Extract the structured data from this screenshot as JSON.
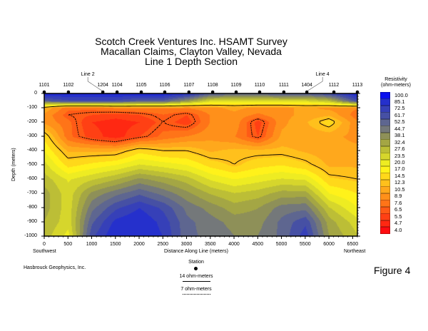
{
  "title": [
    "Scotch Creek Ventures Inc. HSAMT Survey",
    "Macallan Claims, Clayton Valley, Nevada",
    "Line 1 Depth Section"
  ],
  "company": "Hasbrouck Geophysics, Inc.",
  "figure_label": "Figure 4",
  "key": {
    "station_label": "Station",
    "contour_14_label": "14 ohm-meters",
    "contour_7_label": "7 ohm-meters"
  },
  "chart_data": {
    "type": "heatmap",
    "xlabel": "Distance Along Line (meters)",
    "ylabel": "Depth (meters)",
    "xlim": [
      0,
      6600
    ],
    "ylim": [
      -1000,
      0
    ],
    "x_ticks": [
      "0",
      "500",
      "1000",
      "1500",
      "2000",
      "2500",
      "3000",
      "3500",
      "4000",
      "4500",
      "5000",
      "5500",
      "6000",
      "6500"
    ],
    "y_ticks": [
      "0",
      "-100",
      "-200",
      "-300",
      "-400",
      "-500",
      "-600",
      "-700",
      "-800",
      "-900",
      "-1000"
    ],
    "x_end_labels": {
      "left": "Southwest",
      "right": "Northeast"
    },
    "stations": [
      {
        "label": "1101",
        "x": 0
      },
      {
        "label": "1102",
        "x": 510
      },
      {
        "label": "1204",
        "x": 1235
      },
      {
        "label": "1104",
        "x": 1535
      },
      {
        "label": "1105",
        "x": 2045
      },
      {
        "label": "1106",
        "x": 2540
      },
      {
        "label": "1107",
        "x": 3050
      },
      {
        "label": "1108",
        "x": 3550
      },
      {
        "label": "1109",
        "x": 4045
      },
      {
        "label": "1110",
        "x": 4540
      },
      {
        "label": "1111",
        "x": 5050
      },
      {
        "label": "1404",
        "x": 5535
      },
      {
        "label": "1112",
        "x": 6105
      },
      {
        "label": "1113",
        "x": 6600
      }
    ],
    "line_crossings": [
      {
        "label": "Line 2",
        "station": "1204"
      },
      {
        "label": "Line 4",
        "station": "1404"
      }
    ],
    "colorbar": {
      "title": [
        "Resistivity",
        "(ohm-meters)"
      ],
      "levels": [
        100.0,
        85.1,
        72.5,
        61.7,
        52.5,
        44.7,
        38.1,
        32.4,
        27.6,
        23.5,
        20.0,
        17.0,
        14.5,
        12.3,
        10.5,
        8.9,
        7.6,
        6.5,
        5.5,
        4.7,
        4.0
      ],
      "colors": [
        "#0a10ee",
        "#2530cc",
        "#3640b8",
        "#4650a4",
        "#5e6690",
        "#74787a",
        "#8e9058",
        "#a4a644",
        "#bcbe36",
        "#d6d62c",
        "#eeec22",
        "#fff21a",
        "#ffd81a",
        "#ffc01c",
        "#ffa81c",
        "#ff901a",
        "#ff7418",
        "#ff5a16",
        "#ff4014",
        "#ff2812",
        "#ff0c10"
      ]
    },
    "contours": [
      {
        "value": 14,
        "style": "solid"
      },
      {
        "value": 7,
        "style": "dotted"
      }
    ],
    "grid": {
      "x": [
        0,
        500,
        1000,
        1500,
        2000,
        2500,
        3000,
        3500,
        4000,
        4500,
        5000,
        5500,
        6000,
        6600
      ],
      "depth": [
        0,
        50,
        100,
        150,
        200,
        300,
        400,
        500,
        600,
        700,
        800,
        900,
        1000
      ],
      "resistivity": [
        [
          100,
          100,
          100,
          100,
          100,
          100,
          90,
          60,
          55,
          55,
          60,
          60,
          70,
          100
        ],
        [
          60,
          70,
          70,
          70,
          60,
          60,
          40,
          25,
          25,
          25,
          25,
          25,
          30,
          70
        ],
        [
          12,
          8,
          8,
          9,
          9,
          9,
          9,
          10,
          11,
          10,
          10,
          11,
          10,
          9
        ],
        [
          10,
          7,
          6.5,
          6,
          6.5,
          7.5,
          6.5,
          9,
          10,
          8.5,
          10,
          11,
          12,
          8
        ],
        [
          10,
          8,
          5.5,
          5,
          5.5,
          7,
          6,
          9,
          10,
          6,
          10,
          12,
          16,
          9
        ],
        [
          16,
          8,
          6,
          5,
          6.5,
          8,
          9,
          10,
          9,
          6.5,
          11,
          11,
          11,
          10
        ],
        [
          20,
          12,
          12,
          12,
          16,
          14,
          14,
          12,
          13,
          13,
          13,
          12,
          11,
          11
        ],
        [
          25,
          16,
          18,
          20,
          24,
          22,
          20,
          16,
          14,
          16,
          17,
          15,
          12,
          12
        ],
        [
          30,
          23,
          27,
          32,
          40,
          35,
          30,
          23,
          20,
          22,
          24,
          23,
          15,
          14
        ],
        [
          35,
          25,
          40,
          50,
          60,
          50,
          40,
          32,
          28,
          30,
          35,
          35,
          20,
          17
        ],
        [
          35,
          25,
          50,
          70,
          85,
          70,
          50,
          42,
          35,
          38,
          48,
          50,
          28,
          20
        ],
        [
          32,
          25,
          60,
          90,
          100,
          80,
          55,
          48,
          42,
          42,
          55,
          70,
          35,
          25
        ],
        [
          30,
          22,
          70,
          100,
          100,
          85,
          55,
          50,
          45,
          45,
          55,
          80,
          38,
          28
        ]
      ]
    }
  }
}
